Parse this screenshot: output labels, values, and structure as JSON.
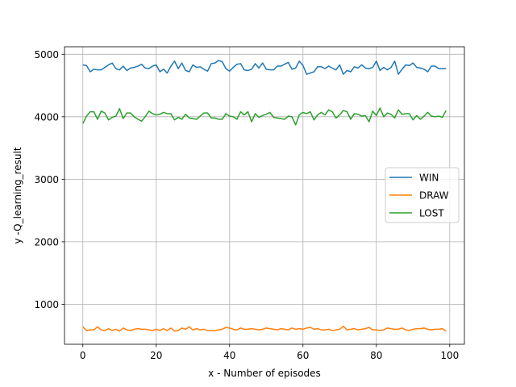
{
  "chart_data": {
    "type": "line",
    "xlabel": "x - Number of episodes",
    "ylabel": "y -Q_learning_result",
    "xlim": [
      -5,
      104
    ],
    "ylim": [
      360,
      5120
    ],
    "xticks": [
      0,
      20,
      40,
      60,
      80,
      100
    ],
    "yticks": [
      1000,
      2000,
      3000,
      4000,
      5000
    ],
    "grid": true,
    "legend_position": "center-right",
    "series": [
      {
        "name": "WIN",
        "color": "#1f77b4",
        "values": [
          4830,
          4820,
          4720,
          4760,
          4750,
          4750,
          4790,
          4830,
          4860,
          4770,
          4750,
          4810,
          4740,
          4780,
          4790,
          4810,
          4840,
          4780,
          4770,
          4810,
          4830,
          4720,
          4760,
          4700,
          4810,
          4890,
          4770,
          4860,
          4740,
          4720,
          4830,
          4790,
          4800,
          4760,
          4730,
          4850,
          4860,
          4900,
          4880,
          4770,
          4730,
          4790,
          4840,
          4850,
          4750,
          4740,
          4760,
          4850,
          4780,
          4860,
          4760,
          4750,
          4750,
          4810,
          4810,
          4840,
          4870,
          4760,
          4780,
          4890,
          4820,
          4680,
          4700,
          4720,
          4800,
          4800,
          4770,
          4810,
          4780,
          4750,
          4830,
          4680,
          4740,
          4720,
          4800,
          4780,
          4830,
          4780,
          4770,
          4790,
          4890,
          4740,
          4790,
          4750,
          4790,
          4890,
          4680,
          4760,
          4830,
          4820,
          4860,
          4790,
          4780,
          4760,
          4720,
          4810,
          4810,
          4770,
          4770,
          4770
        ]
      },
      {
        "name": "DRAW",
        "color": "#ff7f0e",
        "values": [
          640,
          580,
          590,
          590,
          640,
          590,
          580,
          610,
          580,
          600,
          570,
          620,
          590,
          580,
          600,
          610,
          600,
          600,
          590,
          580,
          600,
          580,
          610,
          580,
          620,
          570,
          580,
          620,
          600,
          640,
          590,
          610,
          590,
          600,
          580,
          580,
          580,
          590,
          600,
          630,
          620,
          600,
          590,
          620,
          600,
          600,
          610,
          600,
          590,
          600,
          620,
          610,
          600,
          590,
          610,
          600,
          590,
          620,
          600,
          610,
          600,
          620,
          630,
          600,
          610,
          590,
          590,
          600,
          580,
          590,
          600,
          650,
          590,
          600,
          610,
          590,
          600,
          610,
          630,
          590,
          590,
          580,
          590,
          620,
          610,
          600,
          600,
          620,
          590,
          580,
          600,
          610,
          610,
          620,
          600,
          590,
          600,
          600,
          610,
          570
        ]
      },
      {
        "name": "LOST",
        "color": "#2ca02c",
        "values": [
          3890,
          4010,
          4080,
          4080,
          3960,
          4090,
          4060,
          3950,
          3990,
          4010,
          4130,
          3970,
          4060,
          4060,
          4000,
          3960,
          3930,
          4000,
          4090,
          4050,
          4030,
          4040,
          4070,
          4050,
          4050,
          3950,
          3990,
          3960,
          4040,
          3980,
          3970,
          3960,
          4010,
          4060,
          4060,
          3980,
          3980,
          3960,
          3960,
          4050,
          4010,
          4000,
          3960,
          4080,
          4030,
          4080,
          3920,
          4050,
          3990,
          4020,
          4040,
          4070,
          3990,
          3980,
          3970,
          3960,
          4010,
          4000,
          3870,
          4030,
          4070,
          4050,
          4080,
          3950,
          4030,
          4070,
          4030,
          4110,
          4080,
          3980,
          4030,
          4100,
          4080,
          3960,
          4050,
          4040,
          4010,
          4020,
          3920,
          4090,
          4020,
          4140,
          4000,
          4060,
          4040,
          3980,
          4110,
          4040,
          4050,
          4050,
          3950,
          4020,
          3960,
          4010,
          4070,
          4010,
          4000,
          4010,
          3990,
          4100
        ]
      }
    ]
  }
}
